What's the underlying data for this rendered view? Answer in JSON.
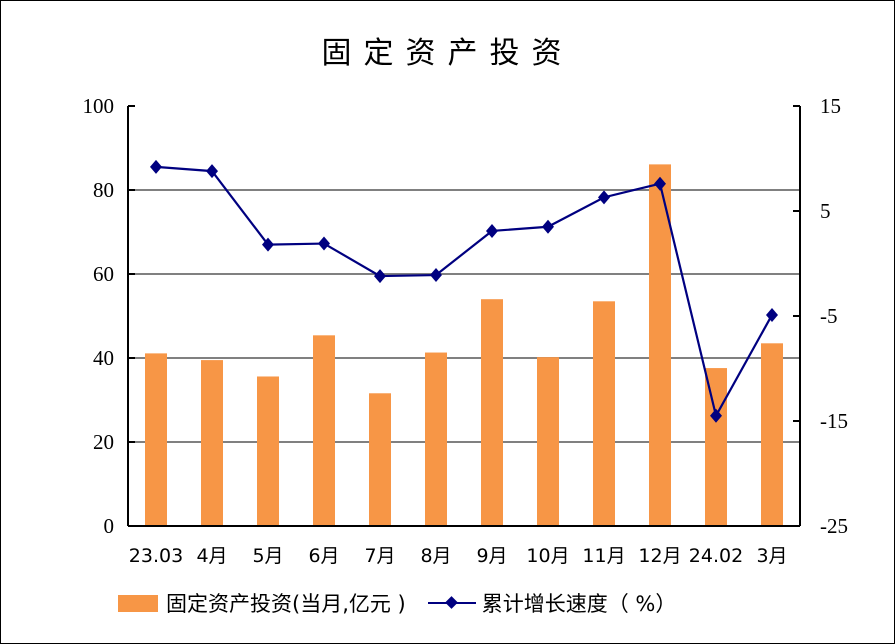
{
  "chart_data": {
    "type": "bar+line",
    "title": "固定资产投资",
    "categories": [
      "23.03",
      "4月",
      "5月",
      "6月",
      "7月",
      "8月",
      "9月",
      "10月",
      "11月",
      "12月",
      "24.02",
      "3月"
    ],
    "series": [
      {
        "name": "固定资产投资(当月,亿元 )",
        "type": "bar",
        "axis": "left",
        "color": "#F79646",
        "values": [
          41.1,
          39.5,
          35.6,
          45.4,
          31.6,
          41.3,
          54.0,
          40.2,
          53.5,
          86.1,
          37.6,
          43.5
        ]
      },
      {
        "name": "累计增长速度（%）",
        "type": "line",
        "axis": "right",
        "color": "#000080",
        "values": [
          9.2,
          8.8,
          1.8,
          1.9,
          -1.2,
          -1.1,
          3.1,
          3.5,
          6.3,
          7.6,
          -14.5,
          -4.9
        ]
      }
    ],
    "left_axis": {
      "ylim": [
        0,
        100
      ],
      "ticks": [
        "0",
        "20",
        "40",
        "60",
        "80",
        "100"
      ]
    },
    "right_axis": {
      "ylim": [
        -25,
        15
      ],
      "ticks": [
        "-25",
        "-15",
        "-5",
        "5",
        "15"
      ]
    },
    "grid": true,
    "legend_position": "bottom",
    "legend": [
      "固定资产投资(当月,亿元 )",
      "累计增长速度（ %）"
    ]
  }
}
